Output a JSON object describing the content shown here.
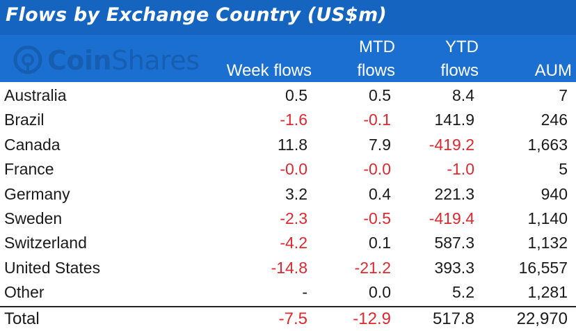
{
  "title": "Flows by Exchange Country (US$m)",
  "watermark": {
    "brand_bold": "Coin",
    "brand_light": "Shares"
  },
  "colors": {
    "title_bg": "#1565c0",
    "header_bg": "#1b6fd0",
    "negative": "#e0282e",
    "text": "#1a1a1a"
  },
  "headers": {
    "week": "Week flows",
    "mtd_line1": "MTD",
    "mtd_line2": "flows",
    "ytd_line1": "YTD",
    "ytd_line2": "flows",
    "aum": "AUM"
  },
  "chart_data": {
    "type": "table",
    "title": "Flows by Exchange Country (US$m)",
    "columns": [
      "",
      "Week flows",
      "MTD flows",
      "YTD flows",
      "AUM"
    ],
    "rows": [
      {
        "name": "Australia",
        "week": "0.5",
        "mtd": "0.5",
        "ytd": "8.4",
        "aum": "7"
      },
      {
        "name": "Brazil",
        "week": "-1.6",
        "mtd": "-0.1",
        "ytd": "141.9",
        "aum": "246"
      },
      {
        "name": "Canada",
        "week": "11.8",
        "mtd": "7.9",
        "ytd": "-419.2",
        "aum": "1,663"
      },
      {
        "name": "France",
        "week": "-0.0",
        "mtd": "-0.0",
        "ytd": "-1.0",
        "aum": "5"
      },
      {
        "name": "Germany",
        "week": "3.2",
        "mtd": "0.4",
        "ytd": "221.3",
        "aum": "940"
      },
      {
        "name": "Sweden",
        "week": "-2.3",
        "mtd": "-0.5",
        "ytd": "-419.4",
        "aum": "1,140"
      },
      {
        "name": "Switzerland",
        "week": "-4.2",
        "mtd": "0.1",
        "ytd": "587.3",
        "aum": "1,132"
      },
      {
        "name": "United States",
        "week": "-14.8",
        "mtd": "-21.2",
        "ytd": "393.3",
        "aum": "16,557"
      },
      {
        "name": "Other",
        "week": "-",
        "mtd": "0.0",
        "ytd": "5.2",
        "aum": "1,281"
      }
    ],
    "total": {
      "name": "Total",
      "week": "-7.5",
      "mtd": "-12.9",
      "ytd": "517.8",
      "aum": "22,970"
    }
  }
}
